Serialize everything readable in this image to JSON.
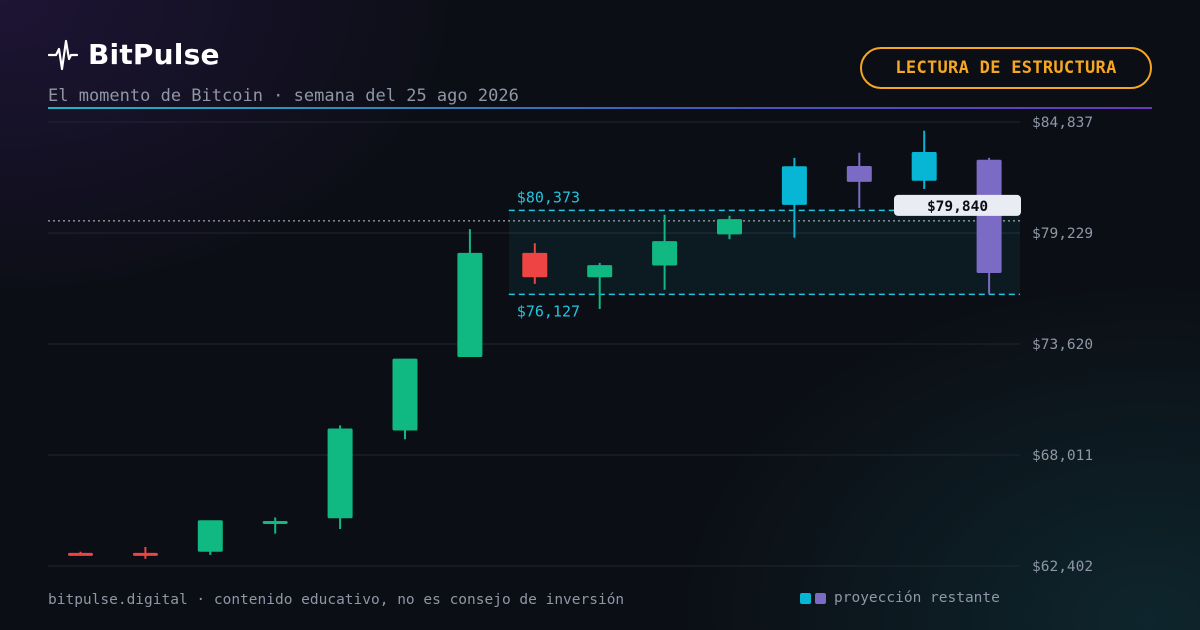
{
  "header": {
    "brand": "BitPulse",
    "subtitle": "El momento de Bitcoin · semana del 25 ago 2026",
    "badge": "LECTURA DE ESTRUCTURA"
  },
  "footer": {
    "left": "bitpulse.digital · contenido educativo, no es consejo de inversión",
    "legend_label": "proyección restante"
  },
  "colors": {
    "up": "#10b981",
    "down": "#ef4444",
    "projection_up": "#06b6d4",
    "projection_alt": "#7c6bc4",
    "range_line": "#22c5dd",
    "badge": "#f5a623"
  },
  "chart_data": {
    "type": "candlestick",
    "ylim": [
      62402,
      84837
    ],
    "yticks": [
      84837,
      79229,
      73620,
      68011,
      62402
    ],
    "ytick_labels": [
      "$84,837",
      "$79,229",
      "$73,620",
      "$68,011",
      "$62,402"
    ],
    "grid": true,
    "range": {
      "high": 80373,
      "low": 76127,
      "high_label": "$80,373",
      "low_label": "$76,127",
      "start_index": 7
    },
    "current_price": {
      "value": 79840,
      "label": "$79,840"
    },
    "candles": [
      {
        "open": 63063,
        "high": 63124,
        "low": 62963,
        "close": 63043,
        "kind": "historical"
      },
      {
        "open": 63063,
        "high": 63363,
        "low": 62764,
        "close": 62963,
        "kind": "historical"
      },
      {
        "open": 63123,
        "high": 64607,
        "low": 62963,
        "close": 64712,
        "kind": "historical"
      },
      {
        "open": 64572,
        "high": 64853,
        "low": 64037,
        "close": 64673,
        "kind": "historical"
      },
      {
        "open": 64814,
        "high": 69507,
        "low": 64272,
        "close": 69349,
        "kind": "historical"
      },
      {
        "open": 69251,
        "high": 72861,
        "low": 68804,
        "close": 72883,
        "kind": "historical"
      },
      {
        "open": 72961,
        "high": 79424,
        "low": 72961,
        "close": 78225,
        "kind": "historical"
      },
      {
        "open": 78225,
        "high": 78713,
        "low": 76658,
        "close": 76992,
        "kind": "historical"
      },
      {
        "open": 76992,
        "high": 77717,
        "low": 75389,
        "close": 77608,
        "kind": "historical"
      },
      {
        "open": 77588,
        "high": 80153,
        "low": 76363,
        "close": 78815,
        "kind": "historical"
      },
      {
        "open": 79156,
        "high": 80098,
        "low": 78916,
        "close": 79928,
        "kind": "historical"
      },
      {
        "open": 80651,
        "high": 83024,
        "low": 78996,
        "close": 82604,
        "kind": "projection"
      },
      {
        "open": 81812,
        "high": 83285,
        "low": 80494,
        "close": 82616,
        "kind": "projection_alt"
      },
      {
        "open": 81869,
        "high": 84398,
        "low": 81453,
        "close": 83318,
        "kind": "projection"
      },
      {
        "open": 82931,
        "high": 83024,
        "low": 76158,
        "close": 77208,
        "kind": "projection_alt"
      }
    ]
  }
}
